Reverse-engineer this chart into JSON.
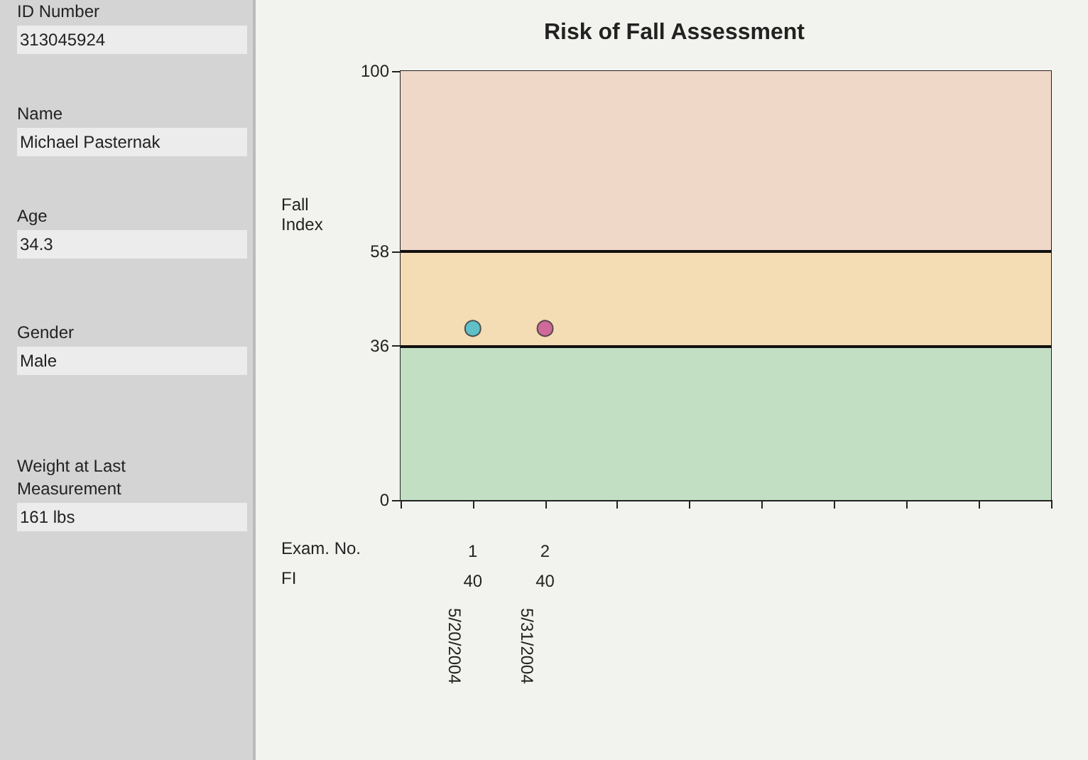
{
  "chart_data": [
    {
      "type": "other",
      "annotations": [
        "ID Number",
        "313045924",
        "Name",
        "Michael Pasternak",
        "Age",
        "34.3",
        "Gender",
        "Male",
        "Weight at Last Measurement",
        "161 lbs"
      ]
    },
    {
      "type": "scatter",
      "title": "Risk of Fall Assessment",
      "ylabel": "Fall Index",
      "xlabel": "Exam. No.",
      "categories": [
        null,
        "1",
        "2",
        null,
        null,
        null,
        null,
        null,
        null,
        null
      ],
      "values": [
        null,
        40,
        40,
        null,
        null,
        null,
        null,
        null,
        null,
        null
      ],
      "colors": [
        null,
        "#3cb8cc",
        "#c44c94",
        null,
        null,
        null,
        null,
        null,
        null,
        null
      ],
      "data_labels": true,
      "marker": "circle",
      "grid": false,
      "ylim": [
        0,
        100
      ],
      "yticks": [
        0,
        36,
        58,
        100
      ],
      "bands": [
        {
          "axis": "y",
          "from": 0,
          "to": 36,
          "color": "#c2dfc4"
        },
        {
          "axis": "y",
          "from": 36,
          "to": 58,
          "color": "#f4dcb4"
        },
        {
          "axis": "y",
          "from": 58,
          "to": 100,
          "color": "#f0d8c8"
        }
      ],
      "ref_lines": [
        {
          "axis": "y",
          "value": 36,
          "color": "#111111"
        },
        {
          "axis": "y",
          "value": 58,
          "color": "#111111"
        }
      ],
      "annotations": [
        "FI",
        "5/20/2004",
        "5/31/2004"
      ]
    }
  ]
}
